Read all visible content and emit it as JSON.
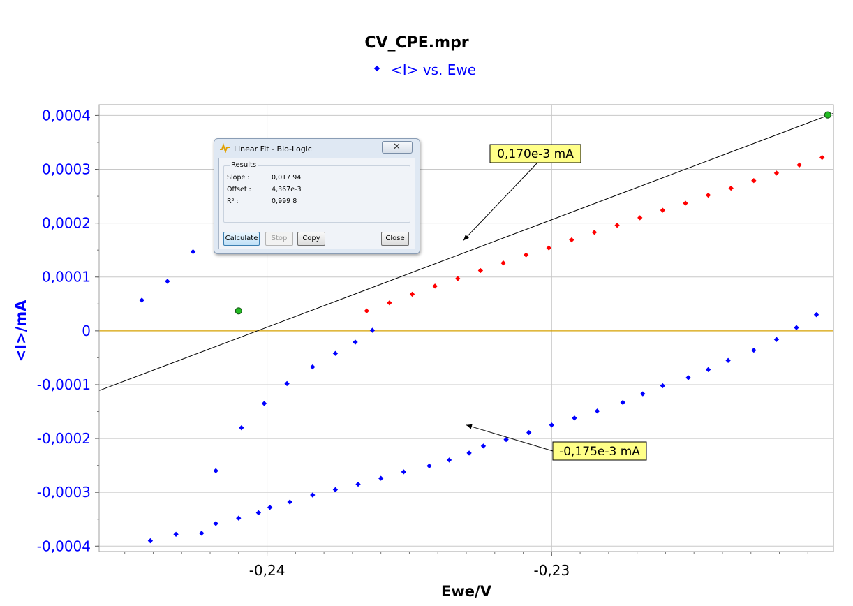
{
  "chart_data": {
    "type": "scatter",
    "title": "CV_CPE.mpr",
    "legend": {
      "entries": [
        "<I> vs. Ewe"
      ],
      "placement": "top-center"
    },
    "xlabel": "Ewe/V",
    "ylabel": "<I>/mA",
    "xlim": [
      -0.2459,
      -0.2201
    ],
    "ylim": [
      -0.00041,
      0.00042
    ],
    "x_ticks": [
      -0.24,
      -0.23
    ],
    "x_tick_labels": [
      "-0,24",
      "-0,23"
    ],
    "y_ticks": [
      0.0004,
      0.0003,
      0.0002,
      0.0001,
      0,
      -0.0001,
      -0.0002,
      -0.0003,
      -0.0004
    ],
    "y_tick_labels": [
      "0,0004",
      "0,0003",
      "0,0002",
      "0,0001",
      "0",
      "-0,0001",
      "-0,0002",
      "-0,0003",
      "-0,0004"
    ],
    "grid": true,
    "colors": {
      "points": "#0000ff",
      "fit_points": "#ff0000",
      "fit_line": "#000000",
      "zero_line": "#d6a000",
      "axis_text": "#0000ff",
      "endpoint": "#22bb22"
    },
    "series": [
      {
        "name": "<I> vs. Ewe",
        "x": [
          -0.2441,
          -0.2432,
          -0.2423,
          -0.2418,
          -0.241,
          -0.2403,
          -0.2399,
          -0.2392,
          -0.2384,
          -0.2376,
          -0.2368,
          -0.236,
          -0.2352,
          -0.2343,
          -0.2336,
          -0.2329,
          -0.2324,
          -0.2316,
          -0.2308,
          -0.23,
          -0.2292,
          -0.2284,
          -0.2275,
          -0.2268,
          -0.2261,
          -0.2252,
          -0.2245,
          -0.2238,
          -0.2229,
          -0.2221,
          -0.2214,
          -0.2207,
          -0.2444,
          -0.2435,
          -0.2426,
          -0.2418,
          -0.2409,
          -0.2401,
          -0.2393,
          -0.2384,
          -0.2376,
          -0.2369,
          -0.2363
        ],
        "y": [
          -0.00039,
          -0.000378,
          -0.000376,
          -0.000358,
          -0.000348,
          -0.000338,
          -0.000328,
          -0.000318,
          -0.000305,
          -0.000295,
          -0.000285,
          -0.000274,
          -0.000262,
          -0.000251,
          -0.00024,
          -0.000227,
          -0.000214,
          -0.000202,
          -0.000189,
          -0.000175,
          -0.000162,
          -0.000149,
          -0.000133,
          -0.000117,
          -0.000102,
          -8.7e-05,
          -7.2e-05,
          -5.5e-05,
          -3.6e-05,
          -1.6e-05,
          6e-06,
          3e-05,
          5.7e-05,
          9.2e-05,
          0.000147,
          -0.00026,
          -0.00018,
          -0.000135,
          -9.8e-05,
          -6.7e-05,
          -4.2e-05,
          -2.1e-05,
          1e-06
        ]
      },
      {
        "name": "Linear Fit",
        "x": [
          -0.2365,
          -0.2357,
          -0.2349,
          -0.2341,
          -0.2333,
          -0.2325,
          -0.2317,
          -0.2309,
          -0.2301,
          -0.2293,
          -0.2285,
          -0.2277,
          -0.2269,
          -0.2261,
          -0.2253,
          -0.2245,
          -0.2237,
          -0.2229,
          -0.2221,
          -0.2213,
          -0.2205,
          -0.2358,
          -0.235
        ],
        "y": [
          3.7e-05,
          5.2e-05,
          6.8e-05,
          8.3e-05,
          9.7e-05,
          0.000112,
          0.000126,
          0.000141,
          0.000154,
          0.000169,
          0.000183,
          0.000196,
          0.00021,
          0.000224,
          0.000237,
          0.000252,
          0.000265,
          0.000279,
          0.000293,
          0.000308,
          0.000322,
          0.000336,
          0.00035
        ]
      }
    ],
    "fit_line": {
      "x": [
        -0.2459,
        -0.2201
      ],
      "y": [
        -0.000111,
        0.000404
      ]
    },
    "endpoints": [
      {
        "x": -0.241,
        "y": 3.7e-05
      },
      {
        "x": -0.2203,
        "y": 0.000401
      }
    ],
    "annotations": [
      {
        "text": "0,170e-3 mA",
        "x": -0.2331,
        "y": 0.000168
      },
      {
        "text": "-0,175e-3 mA",
        "x": -0.233,
        "y": -0.000175
      }
    ]
  },
  "dialog": {
    "title": "Linear Fit - Bio-Logic",
    "group_label": "Results",
    "rows": [
      {
        "label": "Slope :",
        "value": "0,017 94"
      },
      {
        "label": "Offset :",
        "value": "4,367e-3"
      },
      {
        "label": "R² :",
        "value": "0,999 8"
      }
    ],
    "buttons": {
      "calculate": "Calculate",
      "stop": "Stop",
      "copy": "Copy",
      "close": "Close"
    }
  }
}
